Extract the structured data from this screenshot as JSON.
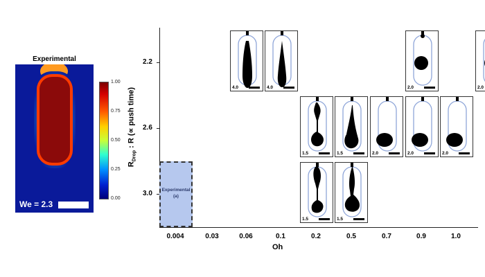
{
  "left_panel": {
    "title": "Experimental",
    "we_label": "We = 2.3",
    "colorbar_ticks": [
      "1.00",
      "0.75",
      "0.50",
      "0.25",
      "0.00"
    ],
    "colors": {
      "outer": "#0a1a9a",
      "body": "#8b0a0a",
      "rim": "#ff3b00"
    }
  },
  "chart_data": {
    "type": "table",
    "xlabel": "Oh",
    "ylabel": "R",
    "ylabel_sub": "Drop",
    "ylabel_tail": " : R (∝ push time)",
    "x_ticks": [
      "0.004",
      "0.03",
      "0.06",
      "0.1",
      "0.2",
      "0.5",
      "0.7",
      "0.9",
      "1.0"
    ],
    "y_ticks": [
      "2.2",
      "2.6",
      "3.0"
    ],
    "cells": [
      {
        "oh": "0.03",
        "r": "2.2",
        "label": "4.0",
        "shape": "column"
      },
      {
        "oh": "0.06",
        "r": "2.2",
        "label": "4.0",
        "shape": "spike"
      },
      {
        "oh": "0.7",
        "r": "2.2",
        "label": "2.0",
        "shape": "drop"
      },
      {
        "oh": "1.0",
        "r": "2.2",
        "label": "2.0",
        "shape": "drop"
      },
      {
        "oh": "0.1",
        "r": "2.6",
        "label": "1.5",
        "shape": "pinch"
      },
      {
        "oh": "0.2",
        "r": "2.6",
        "label": "1.5",
        "shape": "neck"
      },
      {
        "oh": "0.5",
        "r": "2.6",
        "label": "2.0",
        "shape": "drop-low"
      },
      {
        "oh": "0.7",
        "r": "2.6",
        "label": "2.0",
        "shape": "drop-low"
      },
      {
        "oh": "0.9",
        "r": "2.6",
        "label": "2.0",
        "shape": "drop-low"
      },
      {
        "oh": "0.1",
        "r": "3.0",
        "label": "1.5",
        "shape": "pinch-long"
      },
      {
        "oh": "0.2",
        "r": "3.0",
        "label": "1.5",
        "shape": "neck-long"
      }
    ],
    "experimental_cell": {
      "oh": "0.004",
      "r": "3.0",
      "title": "Experimental",
      "sub": "(a)"
    }
  }
}
